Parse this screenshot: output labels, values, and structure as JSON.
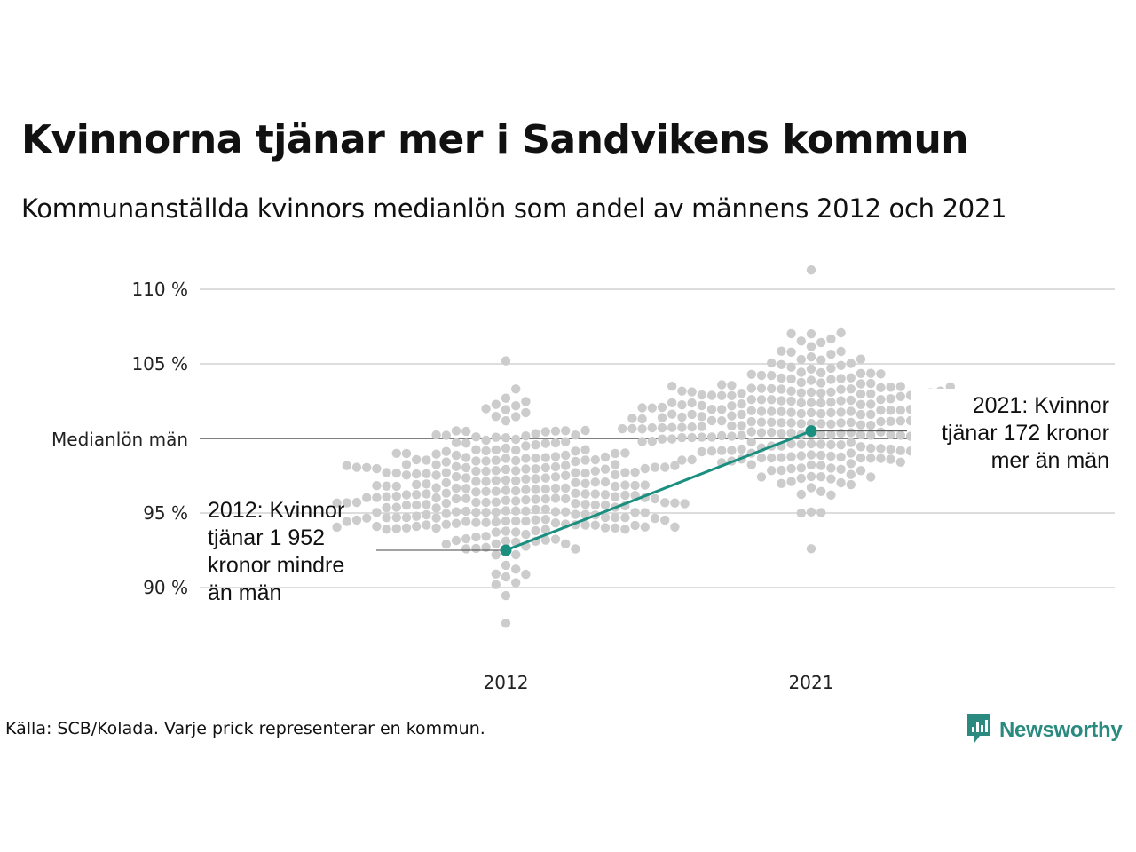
{
  "header": {
    "title": "Kvinnorna tjänar mer i Sandvikens kommun",
    "subtitle": "Kommunanställda kvinnors medianlön som andel av männens 2012 och 2021"
  },
  "footer": {
    "source": "Källa: SCB/Kolada. Varje prick representerar en kommun.",
    "brand": "Newsworthy"
  },
  "colors": {
    "dots": "#cccccc",
    "highlight": "#1a8f80",
    "reference_line": "#333333",
    "grid": "#dddddd",
    "brand": "#2a8a7f"
  },
  "icons": {
    "brand_logo": "newsworthy-logo-icon"
  },
  "chart_data": {
    "type": "scatter",
    "title": "Kvinnorna tjänar mer i Sandvikens kommun",
    "subtitle": "Kommunanställda kvinnors medianlön som andel av männens 2012 och 2021",
    "categories": [
      "2012",
      "2021"
    ],
    "y_range": [
      87,
      111
    ],
    "y_ticks": [
      {
        "value": 90,
        "label": "90 %"
      },
      {
        "value": 95,
        "label": "95 %"
      },
      {
        "value": 105,
        "label": "105 %"
      },
      {
        "value": 110,
        "label": "110 %"
      }
    ],
    "reference_line": {
      "value": 100,
      "label": "Medianlön män"
    },
    "grid": true,
    "distributions": [
      {
        "category": "2012",
        "min": 87.6,
        "max": 105.2,
        "median": 96.5,
        "spread": 2.5,
        "count": 290,
        "seed": 11
      },
      {
        "category": "2021",
        "min": 92.6,
        "max": 111.3,
        "median": 101.0,
        "spread": 2.3,
        "count": 290,
        "seed": 29
      }
    ],
    "highlight": {
      "name": "Sandviken",
      "points": [
        {
          "category": "2012",
          "value": 92.5
        },
        {
          "category": "2021",
          "value": 100.5
        }
      ]
    },
    "annotations": [
      {
        "category": "2012",
        "value": 92.5,
        "lines": [
          "2012: Kvinnor",
          "tjänar 1 952",
          "kronor mindre",
          "än män"
        ]
      },
      {
        "category": "2021",
        "value": 100.5,
        "lines": [
          "2021: Kvinnor",
          "tjänar 172 kronor",
          "mer än män"
        ]
      }
    ]
  }
}
